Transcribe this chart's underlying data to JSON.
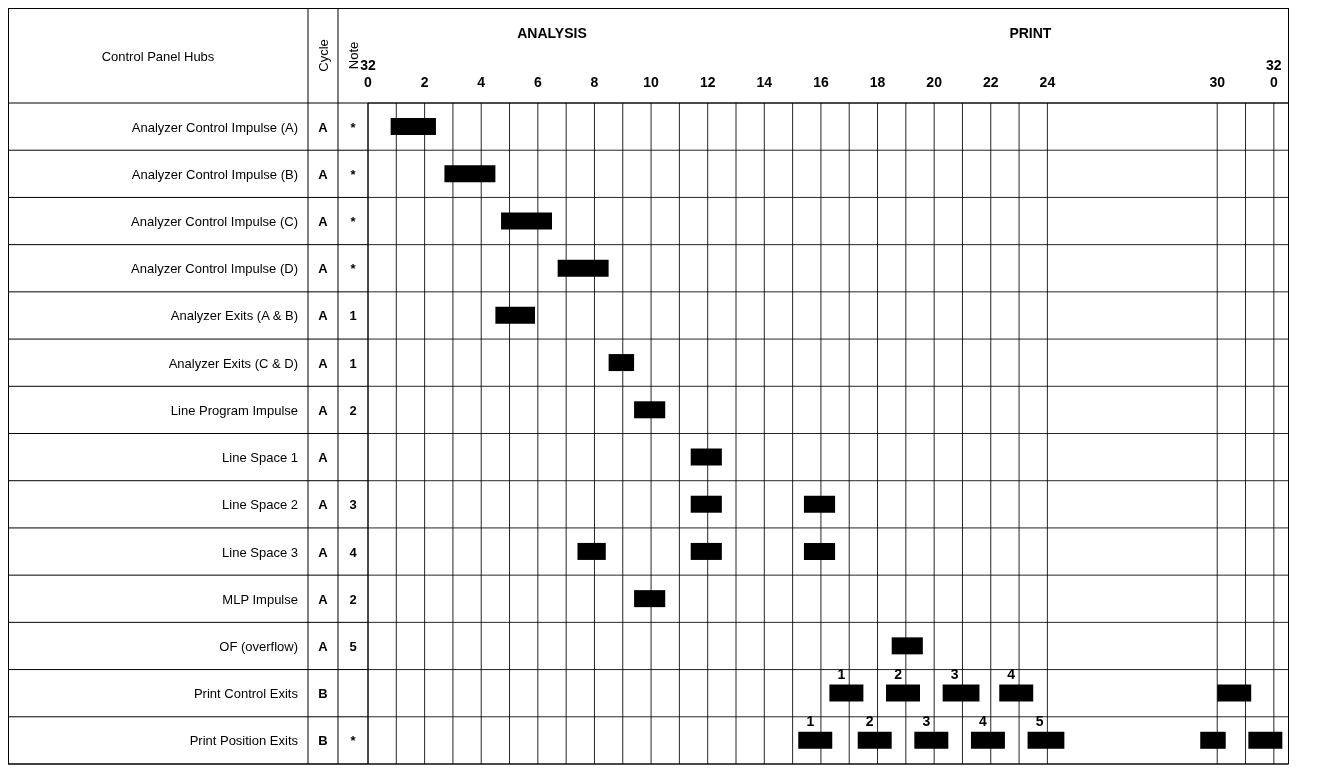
{
  "chart_data": {
    "type": "bar",
    "orientation": "horizontal",
    "y2_categories": [
      "*",
      "*",
      "*",
      "*",
      "1",
      "1",
      "2",
      null,
      "3",
      "4",
      "2",
      "5",
      null,
      "*"
    ],
    "categories": [
      "Analyzer Control Impulse (A)",
      "Analyzer Control Impulse (B)",
      "Analyzer Control Impulse (C)",
      "Analyzer Control Impulse (D)",
      "Analyzer Exits (A & B)",
      "Analyzer Exits (C & D)",
      "Line Program Impulse",
      "Line Space 1",
      "Line Space 2",
      "Line Space 3",
      "MLP Impulse",
      "OF (overflow)",
      "Print Control Exits",
      "Print Position Exits"
    ],
    "series": [
      {
        "color": "#000000",
        "base": [
          0.8,
          2.7,
          4.7,
          6.7,
          4.5,
          8.5,
          9.4,
          11.4,
          11.4,
          7.4,
          9.4,
          18.5,
          16.3,
          15.2
        ],
        "values": [
          1.6,
          1.8,
          1.8,
          1.8,
          1.4,
          0.9,
          1.1,
          1.1,
          1.1,
          1.0,
          1.1,
          1.1,
          1.2,
          1.2
        ]
      },
      {
        "color": "#000000",
        "base": [
          null,
          null,
          null,
          null,
          null,
          null,
          null,
          null,
          15.4,
          11.4,
          null,
          null,
          18.3,
          17.3
        ],
        "values": [
          null,
          null,
          null,
          null,
          null,
          null,
          null,
          null,
          1.1,
          1.1,
          null,
          null,
          1.2,
          1.2
        ]
      },
      {
        "color": "#000000",
        "base": [
          null,
          null,
          null,
          null,
          null,
          null,
          null,
          null,
          null,
          15.4,
          null,
          null,
          20.3,
          19.3
        ],
        "values": [
          null,
          null,
          null,
          null,
          null,
          null,
          null,
          null,
          null,
          1.1,
          null,
          null,
          1.3,
          1.2
        ]
      },
      {
        "color": "#000000",
        "base": [
          null,
          null,
          null,
          null,
          null,
          null,
          null,
          null,
          null,
          null,
          null,
          null,
          22.3,
          21.3
        ],
        "values": [
          null,
          null,
          null,
          null,
          null,
          null,
          null,
          null,
          null,
          null,
          null,
          null,
          1.2,
          1.2
        ]
      },
      {
        "color": "#000000",
        "base": [
          null,
          null,
          null,
          null,
          null,
          null,
          null,
          null,
          null,
          null,
          null,
          null,
          30.0,
          23.3
        ],
        "values": [
          null,
          null,
          null,
          null,
          null,
          null,
          null,
          null,
          null,
          null,
          null,
          null,
          1.2,
          1.3
        ]
      },
      {
        "color": "#000000",
        "base": [
          null,
          null,
          null,
          null,
          null,
          null,
          null,
          null,
          null,
          null,
          null,
          null,
          null,
          29.4
        ],
        "values": [
          null,
          null,
          null,
          null,
          null,
          null,
          null,
          null,
          null,
          null,
          null,
          null,
          null,
          0.9
        ]
      },
      {
        "color": "#000000",
        "base": [
          null,
          null,
          null,
          null,
          null,
          null,
          null,
          null,
          null,
          null,
          null,
          null,
          null,
          31.1
        ],
        "values": [
          null,
          null,
          null,
          null,
          null,
          null,
          null,
          null,
          null,
          null,
          null,
          null,
          null,
          1.2
        ]
      }
    ],
    "xlim": [
      0,
      32.5
    ],
    "xticks": [
      {
        "value": 0,
        "label": "32\n0"
      },
      {
        "value": 1,
        "label": null
      },
      2,
      {
        "value": 3,
        "label": null
      },
      4,
      {
        "value": 5,
        "label": null
      },
      6,
      {
        "value": 7,
        "label": null
      },
      8,
      {
        "value": 9,
        "label": null
      },
      10,
      {
        "value": 11,
        "label": null
      },
      12,
      {
        "value": 13,
        "label": null
      },
      14,
      {
        "value": 15,
        "label": null
      },
      16,
      {
        "value": 17,
        "label": null
      },
      18,
      {
        "value": 19,
        "label": null
      },
      20,
      {
        "value": 21,
        "label": null
      },
      22,
      {
        "value": 23,
        "label": null
      },
      24,
      30,
      {
        "value": 31,
        "label": null
      },
      {
        "value": 32,
        "label": "32\n0"
      }
    ],
    "grid": true,
    "annotations": [
      "Control Panel Hubs",
      "Cycle",
      "Note",
      "ANALYSIS",
      "PRINT",
      "A",
      "A",
      "A",
      "A",
      "A",
      "A",
      "A",
      "A",
      "A",
      "A",
      "A",
      "A",
      "B",
      "B",
      {
        "text": "1",
        "x": 16.3,
        "y": "Print Control Exits"
      },
      {
        "text": "2",
        "x": 18.3,
        "y": "Print Control Exits"
      },
      {
        "text": "3",
        "x": 20.3,
        "y": "Print Control Exits"
      },
      {
        "text": "4",
        "x": 22.3,
        "y": "Print Control Exits"
      },
      {
        "text": "1",
        "x": 15.2,
        "y": "Print Position Exits"
      },
      {
        "text": "2",
        "x": 17.3,
        "y": "Print Position Exits"
      },
      {
        "text": "3",
        "x": 19.3,
        "y": "Print Position Exits"
      },
      {
        "text": "4",
        "x": 21.3,
        "y": "Print Position Exits"
      },
      {
        "text": "5",
        "x": 23.3,
        "y": "Print Position Exits"
      }
    ]
  }
}
